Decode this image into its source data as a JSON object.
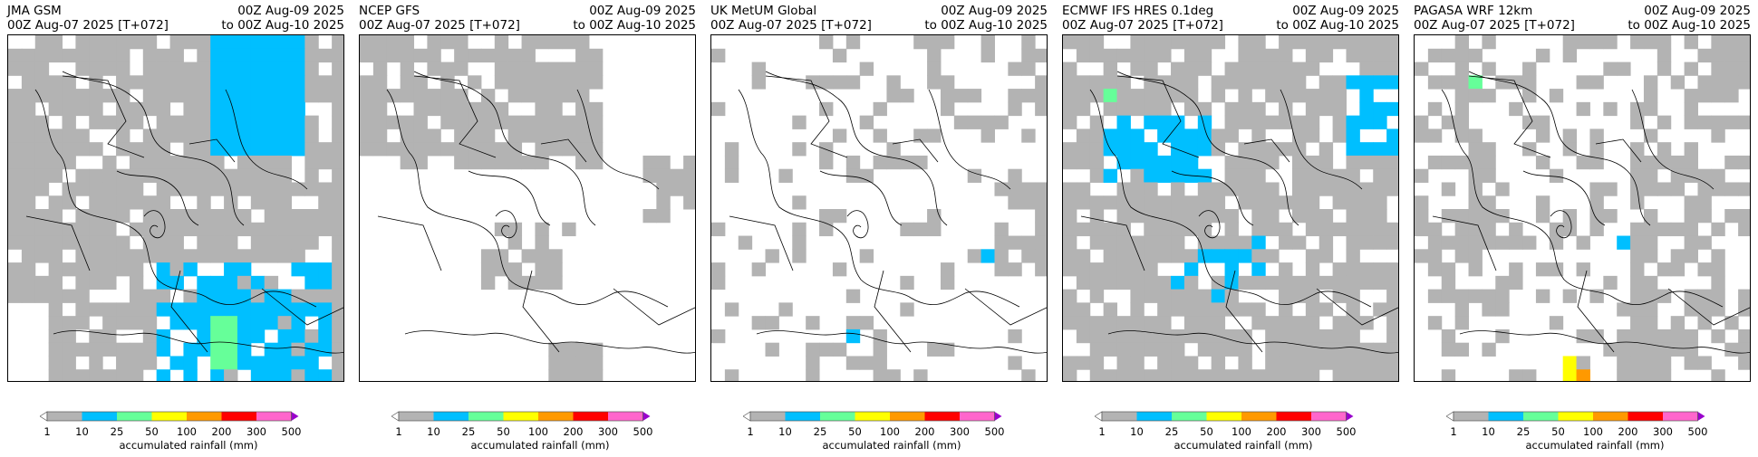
{
  "chart_data": [
    {
      "type": "heatmap",
      "model": "JMA GSM",
      "init": "00Z Aug-07 2025 [T+072]",
      "valid_from": "00Z Aug-09 2025",
      "valid_to": "to 00Z Aug-10 2025",
      "colorbar_label": "accumulated rainfall (mm)",
      "levels": [
        "1",
        "10",
        "25",
        "50",
        "100",
        "200",
        "300",
        "500"
      ],
      "colors": [
        "#b3b3b3",
        "#00bfff",
        "#66ff99",
        "#ffff00",
        "#ff9900",
        "#ff0000",
        "#ff66cc",
        "#9900cc"
      ],
      "coverage": "mostly 1-10 mm; 10-25 mm in NE and southern areas; 25-50 mm locally south"
    },
    {
      "type": "heatmap",
      "model": "NCEP GFS",
      "init": "00Z Aug-07 2025 [T+072]",
      "valid_from": "00Z Aug-09 2025",
      "valid_to": "to 00Z Aug-10 2025",
      "colorbar_label": "accumulated rainfall (mm)",
      "levels": [
        "1",
        "10",
        "25",
        "50",
        "100",
        "200",
        "300",
        "500"
      ],
      "colors": [
        "#b3b3b3",
        "#00bfff",
        "#66ff99",
        "#ffff00",
        "#ff9900",
        "#ff0000",
        "#ff66cc",
        "#9900cc"
      ],
      "coverage": "1-10 mm over northwest and scattered areas"
    },
    {
      "type": "heatmap",
      "model": "UK MetUM Global",
      "init": "00Z Aug-07 2025 [T+072]",
      "valid_from": "00Z Aug-09 2025",
      "valid_to": "to 00Z Aug-10 2025",
      "colorbar_label": "accumulated rainfall (mm)",
      "levels": [
        "1",
        "10",
        "25",
        "50",
        "100",
        "200",
        "300",
        "500"
      ],
      "colors": [
        "#b3b3b3",
        "#00bfff",
        "#66ff99",
        "#ffff00",
        "#ff9900",
        "#ff0000",
        "#ff66cc",
        "#9900cc"
      ],
      "coverage": "scattered 1-10 mm; isolated 10-25 mm"
    },
    {
      "type": "heatmap",
      "model": "ECMWF IFS HRES 0.1deg",
      "init": "00Z Aug-07 2025 [T+072]",
      "valid_from": "00Z Aug-09 2025",
      "valid_to": "to 00Z Aug-10 2025",
      "colorbar_label": "accumulated rainfall (mm)",
      "levels": [
        "1",
        "10",
        "25",
        "50",
        "100",
        "200",
        "300",
        "500"
      ],
      "colors": [
        "#b3b3b3",
        "#00bfff",
        "#66ff99",
        "#ffff00",
        "#ff9900",
        "#ff0000",
        "#ff66cc",
        "#9900cc"
      ],
      "coverage": "widespread 1-10 mm; 10-25 mm north and east; isolated 25-50 mm"
    },
    {
      "type": "heatmap",
      "model": "PAGASA WRF 12km",
      "init": "00Z Aug-07 2025 [T+072]",
      "valid_from": "00Z Aug-09 2025",
      "valid_to": "to 00Z Aug-10 2025",
      "colorbar_label": "accumulated rainfall (mm)",
      "levels": [
        "1",
        "10",
        "25",
        "50",
        "100",
        "200",
        "300",
        "500"
      ],
      "colors": [
        "#b3b3b3",
        "#00bfff",
        "#66ff99",
        "#ffff00",
        "#ff9900",
        "#ff0000",
        "#ff66cc",
        "#9900cc"
      ],
      "coverage": "scattered 1-10 mm; 10-25 mm locally; up to 100-200 mm in far south"
    }
  ]
}
